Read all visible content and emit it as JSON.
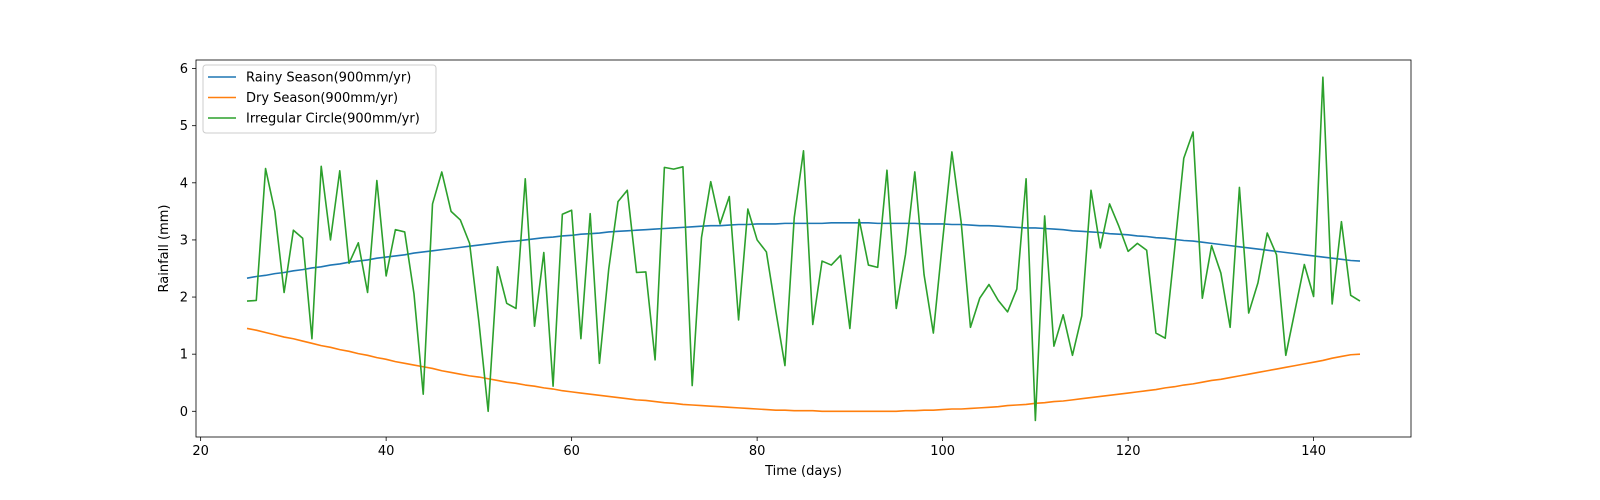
{
  "chart_data": {
    "type": "line",
    "title": "",
    "xlabel": "Time (days)",
    "ylabel": "Rainfall (mm)",
    "xlim": [
      19.5,
      150.5
    ],
    "ylim": [
      -0.45,
      6.15
    ],
    "xticks": [
      20,
      40,
      60,
      80,
      100,
      120,
      140
    ],
    "yticks": [
      0,
      1,
      2,
      3,
      4,
      5,
      6
    ],
    "grid": false,
    "legend_position": "upper-left",
    "x": [
      25,
      26,
      27,
      28,
      29,
      30,
      31,
      32,
      33,
      34,
      35,
      36,
      37,
      38,
      39,
      40,
      41,
      42,
      43,
      44,
      45,
      46,
      47,
      48,
      49,
      50,
      51,
      52,
      53,
      54,
      55,
      56,
      57,
      58,
      59,
      60,
      61,
      62,
      63,
      64,
      65,
      66,
      67,
      68,
      69,
      70,
      71,
      72,
      73,
      74,
      75,
      76,
      77,
      78,
      79,
      80,
      81,
      82,
      83,
      84,
      85,
      86,
      87,
      88,
      89,
      90,
      91,
      92,
      93,
      94,
      95,
      96,
      97,
      98,
      99,
      100,
      101,
      102,
      103,
      104,
      105,
      106,
      107,
      108,
      109,
      110,
      111,
      112,
      113,
      114,
      115,
      116,
      117,
      118,
      119,
      120,
      121,
      122,
      123,
      124,
      125,
      126,
      127,
      128,
      129,
      130,
      131,
      132,
      133,
      134,
      135,
      136,
      137,
      138,
      139,
      140,
      141,
      142,
      143,
      144,
      145
    ],
    "series": [
      {
        "name": "Rainy Season(900mm/yr)",
        "color": "#1f77b4",
        "values": [
          2.33,
          2.36,
          2.38,
          2.41,
          2.43,
          2.46,
          2.48,
          2.51,
          2.53,
          2.56,
          2.58,
          2.61,
          2.63,
          2.65,
          2.68,
          2.7,
          2.72,
          2.74,
          2.77,
          2.79,
          2.81,
          2.83,
          2.85,
          2.87,
          2.89,
          2.91,
          2.93,
          2.95,
          2.97,
          2.98,
          3.0,
          3.02,
          3.04,
          3.05,
          3.07,
          3.08,
          3.1,
          3.11,
          3.12,
          3.14,
          3.15,
          3.16,
          3.17,
          3.18,
          3.19,
          3.2,
          3.21,
          3.22,
          3.23,
          3.24,
          3.25,
          3.25,
          3.26,
          3.27,
          3.27,
          3.28,
          3.28,
          3.28,
          3.29,
          3.29,
          3.29,
          3.29,
          3.29,
          3.3,
          3.3,
          3.3,
          3.3,
          3.3,
          3.29,
          3.29,
          3.29,
          3.29,
          3.29,
          3.28,
          3.28,
          3.28,
          3.27,
          3.27,
          3.26,
          3.25,
          3.25,
          3.24,
          3.23,
          3.22,
          3.21,
          3.21,
          3.2,
          3.19,
          3.18,
          3.16,
          3.15,
          3.14,
          3.13,
          3.11,
          3.1,
          3.09,
          3.07,
          3.06,
          3.04,
          3.03,
          3.01,
          2.99,
          2.98,
          2.96,
          2.94,
          2.92,
          2.9,
          2.88,
          2.86,
          2.84,
          2.82,
          2.8,
          2.78,
          2.76,
          2.74,
          2.72,
          2.7,
          2.68,
          2.66,
          2.64,
          2.63
        ]
      },
      {
        "name": "Dry Season(900mm/yr)",
        "color": "#ff7f0e",
        "values": [
          1.45,
          1.42,
          1.38,
          1.34,
          1.3,
          1.27,
          1.23,
          1.19,
          1.15,
          1.12,
          1.08,
          1.05,
          1.01,
          0.98,
          0.94,
          0.91,
          0.87,
          0.84,
          0.81,
          0.78,
          0.75,
          0.71,
          0.68,
          0.65,
          0.62,
          0.6,
          0.57,
          0.54,
          0.51,
          0.49,
          0.46,
          0.44,
          0.41,
          0.39,
          0.36,
          0.34,
          0.32,
          0.3,
          0.28,
          0.26,
          0.24,
          0.22,
          0.2,
          0.19,
          0.17,
          0.15,
          0.14,
          0.12,
          0.11,
          0.1,
          0.09,
          0.08,
          0.07,
          0.06,
          0.05,
          0.04,
          0.03,
          0.02,
          0.02,
          0.01,
          0.01,
          0.01,
          0.0,
          0.0,
          0.0,
          0.0,
          0.0,
          0.0,
          0.0,
          0.0,
          0.0,
          0.01,
          0.01,
          0.02,
          0.02,
          0.03,
          0.04,
          0.04,
          0.05,
          0.06,
          0.07,
          0.08,
          0.1,
          0.11,
          0.12,
          0.14,
          0.15,
          0.17,
          0.18,
          0.2,
          0.22,
          0.24,
          0.26,
          0.28,
          0.3,
          0.32,
          0.34,
          0.36,
          0.38,
          0.41,
          0.43,
          0.46,
          0.48,
          0.51,
          0.54,
          0.56,
          0.59,
          0.62,
          0.65,
          0.68,
          0.71,
          0.74,
          0.77,
          0.8,
          0.83,
          0.86,
          0.89,
          0.93,
          0.96,
          0.99,
          1.0
        ]
      },
      {
        "name": "Irregular Circle(900mm/yr)",
        "color": "#2ca02c",
        "values": [
          1.93,
          1.94,
          4.25,
          3.5,
          2.08,
          3.17,
          3.03,
          1.27,
          4.29,
          3.0,
          4.21,
          2.59,
          2.95,
          2.08,
          4.04,
          2.37,
          3.18,
          3.14,
          2.06,
          0.3,
          3.63,
          4.19,
          3.5,
          3.35,
          2.94,
          1.57,
          0.0,
          2.53,
          1.89,
          1.8,
          4.07,
          1.49,
          2.78,
          0.44,
          3.45,
          3.52,
          1.27,
          3.46,
          0.84,
          2.49,
          3.67,
          3.87,
          2.43,
          2.44,
          0.9,
          4.27,
          4.24,
          4.28,
          0.45,
          3.04,
          4.02,
          3.28,
          3.76,
          1.6,
          3.54,
          3.0,
          2.79,
          1.77,
          0.8,
          3.39,
          4.56,
          1.52,
          2.63,
          2.56,
          2.73,
          1.45,
          3.36,
          2.56,
          2.52,
          4.22,
          1.8,
          2.75,
          4.19,
          2.39,
          1.37,
          2.99,
          4.54,
          3.31,
          1.47,
          1.98,
          2.22,
          1.94,
          1.74,
          2.14,
          4.07,
          -0.16,
          3.42,
          1.14,
          1.69,
          0.98,
          1.67,
          3.87,
          2.86,
          3.63,
          3.24,
          2.8,
          2.94,
          2.82,
          1.37,
          1.28,
          2.82,
          4.43,
          4.89,
          1.98,
          2.9,
          2.42,
          1.47,
          3.92,
          1.72,
          2.25,
          3.12,
          2.74,
          0.98,
          1.77,
          2.57,
          2.01,
          5.85,
          1.88,
          3.32,
          2.03,
          1.93
        ]
      }
    ]
  }
}
